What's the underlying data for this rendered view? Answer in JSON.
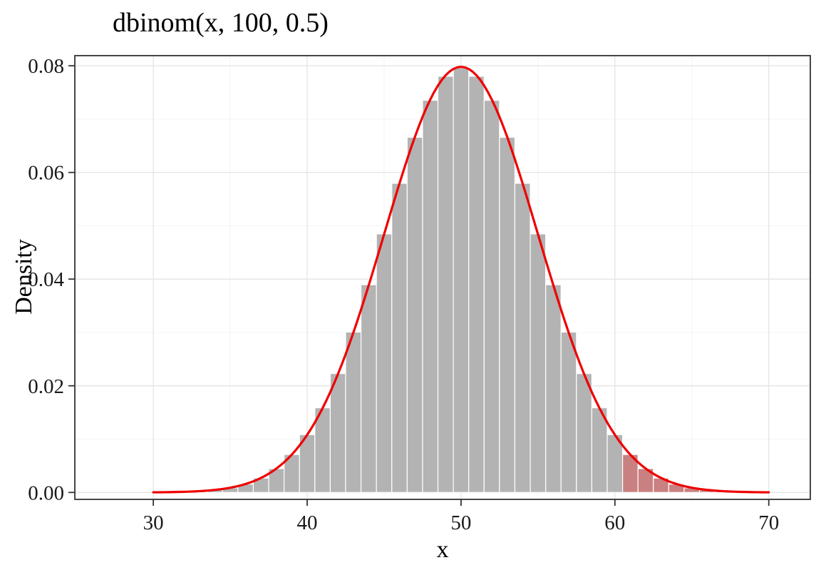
{
  "chart_data": {
    "type": "bar",
    "title": "dbinom(x, 100, 0.5)",
    "xlabel": "x",
    "ylabel": "Density",
    "grid": true,
    "legend": false,
    "xlim": [
      24.9,
      72.7
    ],
    "ylim": [
      -0.0013,
      0.0819
    ],
    "x_ticks": [
      30,
      40,
      50,
      60,
      70
    ],
    "x_tick_labels": [
      "30",
      "40",
      "50",
      "60",
      "70"
    ],
    "x_minor_ticks": [
      35,
      45,
      55,
      65
    ],
    "y_tick_values": [
      0,
      0.02,
      0.04,
      0.06,
      0.08
    ],
    "y_tick_labels": [
      "0.00",
      "0.02",
      "0.04",
      "0.06",
      "0.08"
    ],
    "y_minor_values": [
      0.01,
      0.03,
      0.05,
      0.07
    ],
    "categories": [
      30,
      31,
      32,
      33,
      34,
      35,
      36,
      37,
      38,
      39,
      40,
      41,
      42,
      43,
      44,
      45,
      46,
      47,
      48,
      49,
      50,
      51,
      52,
      53,
      54,
      55,
      56,
      57,
      58,
      59,
      60,
      61,
      62,
      63,
      64,
      65,
      66,
      67,
      68,
      69,
      70
    ],
    "values": [
      2.32e-05,
      5.24e-05,
      0.000113,
      0.000233,
      0.000458,
      0.000864,
      0.00156,
      0.0027,
      0.00447,
      0.00711,
      0.01084,
      0.01587,
      0.02229,
      0.03007,
      0.03895,
      0.04847,
      0.05796,
      0.06659,
      0.07353,
      0.07803,
      0.07959,
      0.07803,
      0.07353,
      0.06659,
      0.05796,
      0.04847,
      0.03895,
      0.03007,
      0.02229,
      0.01587,
      0.01084,
      0.00711,
      0.00447,
      0.0027,
      0.00156,
      0.000864,
      0.000458,
      0.000233,
      0.000113,
      5.24e-05,
      2.32e-05
    ],
    "highlight_from_x": 61,
    "curve": {
      "type": "normal",
      "mean": 50,
      "sd": 5,
      "peak": 0.0798,
      "x_range": [
        30,
        70
      ]
    },
    "colors": {
      "bar": "#b3b3b3",
      "bar_highlight": "#c98080",
      "bar_border": "#ffffff",
      "curve": "#ee0000",
      "grid_major": "#e6e6e6",
      "grid_minor": "#f4f4f4",
      "panel_border": "#333333",
      "tick": "#333333",
      "text": "#1a1a1a"
    }
  }
}
